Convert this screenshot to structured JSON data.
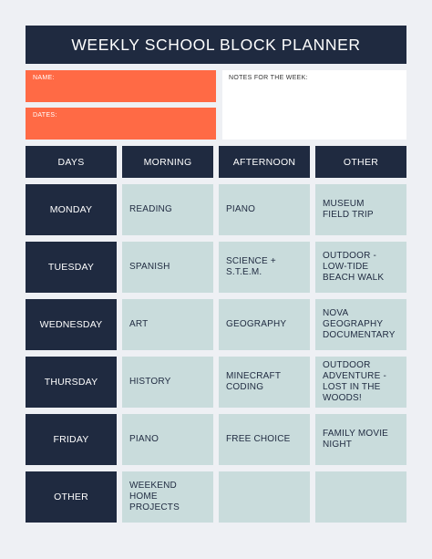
{
  "title": "WEEKLY SCHOOL BLOCK PLANNER",
  "fields": {
    "name_label": "NAME:",
    "dates_label": "DATES:",
    "notes_label": "NOTES FOR THE WEEK:"
  },
  "columns": [
    "DAYS",
    "MORNING",
    "AFTERNOON",
    "OTHER"
  ],
  "rows": [
    {
      "day": "MONDAY",
      "morning": "READING",
      "afternoon": "PIANO",
      "other": "MUSEUM\nFIELD TRIP"
    },
    {
      "day": "TUESDAY",
      "morning": "SPANISH",
      "afternoon": "SCIENCE +\nS.T.E.M.",
      "other": "OUTDOOR -\nLOW-TIDE\nBEACH WALK"
    },
    {
      "day": "WEDNESDAY",
      "morning": "ART",
      "afternoon": "GEOGRAPHY",
      "other": "NOVA\nGEOGRAPHY\nDOCUMENTARY"
    },
    {
      "day": "THURSDAY",
      "morning": "HISTORY",
      "afternoon": "MINECRAFT\nCODING",
      "other": "OUTDOOR\nADVENTURE -\nLOST IN THE\nWOODS!"
    },
    {
      "day": "FRIDAY",
      "morning": "PIANO",
      "afternoon": "FREE CHOICE",
      "other": "FAMILY MOVIE\nNIGHT"
    },
    {
      "day": "OTHER",
      "morning": "WEEKEND\nHOME PROJECTS",
      "afternoon": "",
      "other": ""
    }
  ],
  "colors": {
    "navy": "#1f2a40",
    "orange": "#ff6a45",
    "cell_blue": "#c9dcdc",
    "background": "#eef0f4"
  }
}
